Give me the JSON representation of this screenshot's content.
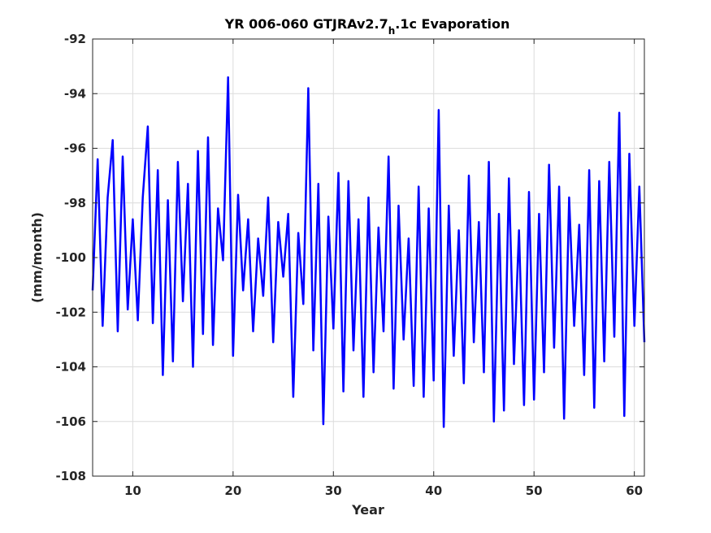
{
  "chart_data": {
    "type": "line",
    "title": "YR 006-060 GTJRAv2.7",
    "title_subscript": "h",
    "title_suffix": ".1c Evaporation",
    "xlabel": "Year",
    "ylabel": "(mm/month)",
    "xlim": [
      6,
      61
    ],
    "ylim": [
      -108,
      -92
    ],
    "xticks": [
      10,
      20,
      30,
      40,
      50,
      60
    ],
    "yticks": [
      -108,
      -106,
      -104,
      -102,
      -100,
      -98,
      -96,
      -94,
      -92
    ],
    "grid": true,
    "line_color": "#0000ff",
    "series": [
      {
        "x": [
          6.0,
          6.5,
          7.0,
          7.5,
          8.0,
          8.5,
          9.0,
          9.5,
          10.0,
          10.5,
          11.0,
          11.5,
          12.0,
          12.5,
          13.0,
          13.5,
          14.0,
          14.5,
          15.0,
          15.5,
          16.0,
          16.5,
          17.0,
          17.5,
          18.0,
          18.5,
          19.0,
          19.5,
          20.0,
          20.5,
          21.0,
          21.5,
          22.0,
          22.5,
          23.0,
          23.5,
          24.0,
          24.5,
          25.0,
          25.5,
          26.0,
          26.5,
          27.0,
          27.5,
          28.0,
          28.5,
          29.0,
          29.5,
          30.0,
          30.5,
          31.0,
          31.5,
          32.0,
          32.5,
          33.0,
          33.5,
          34.0,
          34.5,
          35.0,
          35.5,
          36.0,
          36.5,
          37.0,
          37.5,
          38.0,
          38.5,
          39.0,
          39.5,
          40.0,
          40.5,
          41.0,
          41.5,
          42.0,
          42.5,
          43.0,
          43.5,
          44.0,
          44.5,
          45.0,
          45.5,
          46.0,
          46.5,
          47.0,
          47.5,
          48.0,
          48.5,
          49.0,
          49.5,
          50.0,
          50.5,
          51.0,
          51.5,
          52.0,
          52.5,
          53.0,
          53.5,
          54.0,
          54.5,
          55.0,
          55.5,
          56.0,
          56.5,
          57.0,
          57.5,
          58.0,
          58.5,
          59.0,
          59.5,
          60.0,
          60.5,
          61.0
        ],
        "values": [
          -101.2,
          -96.4,
          -102.5,
          -97.8,
          -95.7,
          -102.7,
          -96.3,
          -101.9,
          -98.6,
          -102.3,
          -97.8,
          -95.2,
          -102.4,
          -96.8,
          -104.3,
          -97.9,
          -103.8,
          -96.5,
          -101.6,
          -97.3,
          -104.0,
          -96.1,
          -102.8,
          -95.6,
          -103.2,
          -98.2,
          -100.1,
          -93.4,
          -103.6,
          -97.7,
          -101.2,
          -98.6,
          -102.7,
          -99.3,
          -101.4,
          -97.8,
          -103.1,
          -98.7,
          -100.7,
          -98.4,
          -105.1,
          -99.1,
          -101.7,
          -93.8,
          -103.4,
          -97.3,
          -106.1,
          -98.5,
          -102.6,
          -96.9,
          -104.9,
          -97.2,
          -103.4,
          -98.6,
          -105.1,
          -97.8,
          -104.2,
          -98.9,
          -102.7,
          -96.3,
          -104.8,
          -98.1,
          -103.0,
          -99.3,
          -104.7,
          -97.4,
          -105.1,
          -98.2,
          -104.5,
          -94.6,
          -106.2,
          -98.1,
          -103.6,
          -99.0,
          -104.6,
          -97.0,
          -103.1,
          -98.7,
          -104.2,
          -96.5,
          -106.0,
          -98.4,
          -105.6,
          -97.1,
          -103.9,
          -99.0,
          -105.4,
          -97.6,
          -105.2,
          -98.4,
          -104.2,
          -96.6,
          -103.3,
          -97.4,
          -105.9,
          -97.8,
          -102.5,
          -98.8,
          -104.3,
          -96.8,
          -105.5,
          -97.2,
          -103.8,
          -96.5,
          -102.9,
          -94.7,
          -105.8,
          -96.2,
          -102.5,
          -97.4,
          -103.1
        ]
      }
    ]
  }
}
